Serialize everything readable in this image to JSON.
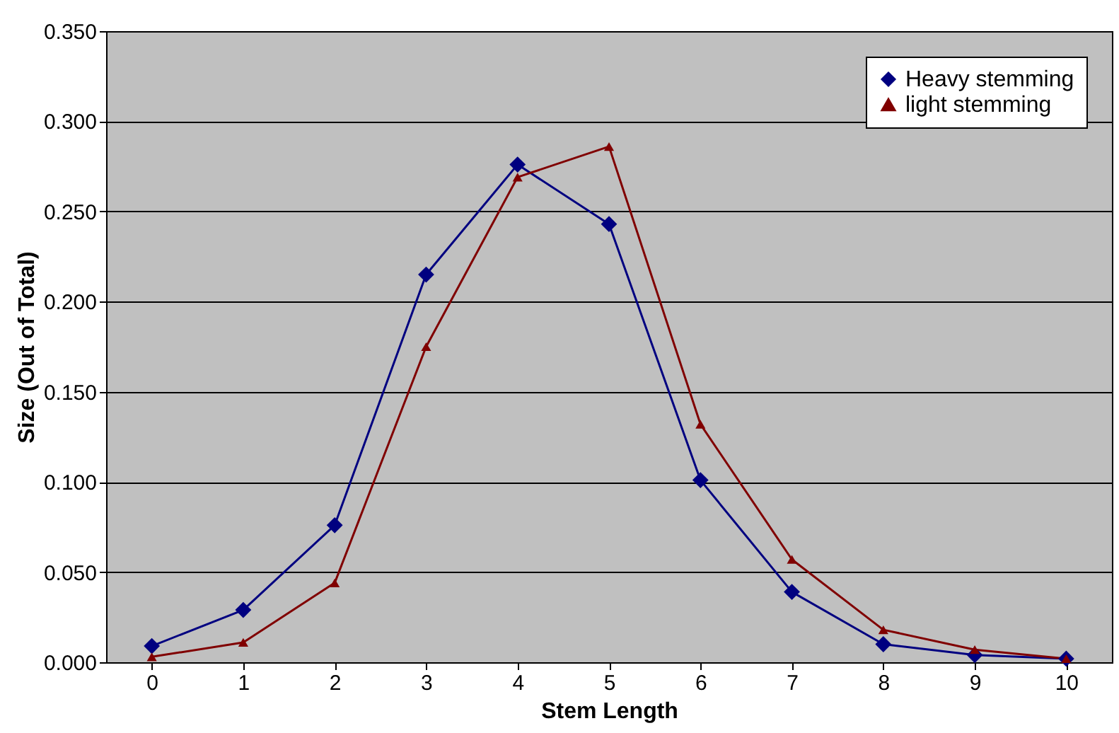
{
  "chart_data": {
    "type": "line",
    "xlabel": "Stem Length",
    "ylabel": "Size (Out of Total)",
    "categories": [
      "0",
      "1",
      "2",
      "3",
      "4",
      "5",
      "6",
      "7",
      "8",
      "9",
      "10"
    ],
    "series": [
      {
        "name": "Heavy stemming",
        "color": "#000080",
        "marker": "diamond",
        "values": [
          0.009,
          0.029,
          0.076,
          0.215,
          0.276,
          0.243,
          0.101,
          0.039,
          0.01,
          0.004,
          0.002
        ]
      },
      {
        "name": "light stemming",
        "color": "#800000",
        "marker": "triangle",
        "values": [
          0.003,
          0.011,
          0.044,
          0.175,
          0.269,
          0.286,
          0.132,
          0.057,
          0.018,
          0.007,
          0.002
        ]
      }
    ],
    "ylim": [
      0,
      0.35
    ],
    "yticks": [
      {
        "value": 0,
        "label": "0.000"
      },
      {
        "value": 0.05,
        "label": "0.050"
      },
      {
        "value": 0.1,
        "label": "0.100"
      },
      {
        "value": 0.15,
        "label": "0.150"
      },
      {
        "value": 0.2,
        "label": "0.200"
      },
      {
        "value": 0.25,
        "label": "0.250"
      },
      {
        "value": 0.3,
        "label": "0.300"
      },
      {
        "value": 0.35,
        "label": "0.350"
      }
    ],
    "grid": "y",
    "legend": "top right",
    "line_style": "solid"
  }
}
